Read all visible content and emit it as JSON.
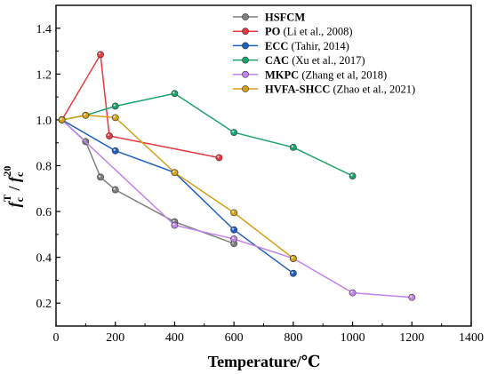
{
  "chart_data": {
    "type": "line",
    "xlabel": "Temperature/℃",
    "ylabel": {
      "base": "f",
      "sub": "c",
      "sup": "T",
      "slash": " / ",
      "base2": "f",
      "sub2": "c",
      "sup2": "20"
    },
    "xlim": [
      0,
      1400
    ],
    "ylim": [
      0.1,
      1.5
    ],
    "x_ticks": [
      0,
      200,
      400,
      600,
      800,
      1000,
      1200,
      1400
    ],
    "y_ticks": [
      0.2,
      0.4,
      0.6,
      0.8,
      1.0,
      1.2,
      1.4
    ],
    "x_tick_labels": [
      "0",
      "200",
      "400",
      "600",
      "800",
      "1000",
      "1200",
      "1400"
    ],
    "y_tick_labels": [
      "0.2",
      "0.4",
      "0.6",
      "0.8",
      "1.0",
      "1.2",
      "1.4"
    ],
    "grid": false,
    "legend_position": "top-right",
    "series": [
      {
        "name": "HSFCM",
        "name_bold": "HSFCM",
        "name_rest": "",
        "color": "#7f7f7f",
        "x": [
          20,
          100,
          150,
          200,
          400,
          600
        ],
        "y": [
          1.0,
          0.905,
          0.75,
          0.695,
          0.555,
          0.46
        ]
      },
      {
        "name": "PO (Li et al., 2008)",
        "name_bold": "PO",
        "name_rest": " (Li et al., 2008)",
        "color": "#e8393f",
        "x": [
          20,
          150,
          180,
          550
        ],
        "y": [
          1.0,
          1.285,
          0.93,
          0.835
        ]
      },
      {
        "name": "ECC (Tahir, 2014)",
        "name_bold": "ECC",
        "name_rest": " (Tahir, 2014)",
        "color": "#1f5fc0",
        "x": [
          20,
          200,
          400,
          600,
          800
        ],
        "y": [
          1.0,
          0.865,
          0.77,
          0.52,
          0.33
        ]
      },
      {
        "name": "CAC (Xu et al., 2017)",
        "name_bold": "CAC",
        "name_rest": " (Xu et al., 2017)",
        "color": "#1aa36a",
        "x": [
          20,
          100,
          200,
          400,
          600,
          800,
          1000
        ],
        "y": [
          1.0,
          1.02,
          1.06,
          1.115,
          0.945,
          0.88,
          0.755
        ]
      },
      {
        "name": "MKPC (Zhang et al, 2018)",
        "name_bold": "MKPC",
        "name_rest": " (Zhang et al, 2018)",
        "color": "#c183e8",
        "x": [
          20,
          400,
          600,
          800,
          1000,
          1200
        ],
        "y": [
          1.0,
          0.54,
          0.48,
          0.395,
          0.245,
          0.225
        ]
      },
      {
        "name": "HVFA-SHCC (Zhao et al., 2021)",
        "name_bold": "HVFA-SHCC",
        "name_rest": " (Zhao et al., 2021)",
        "color": "#d4a017",
        "x": [
          20,
          100,
          200,
          400,
          600,
          800
        ],
        "y": [
          1.0,
          1.02,
          1.01,
          0.77,
          0.595,
          0.395
        ]
      }
    ]
  }
}
